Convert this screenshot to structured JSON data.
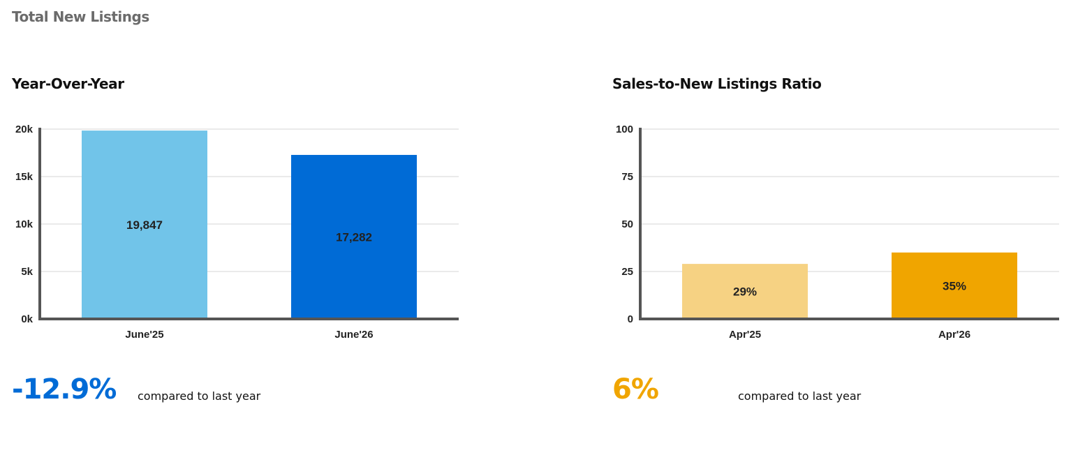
{
  "header": {
    "title": "Total New Listings"
  },
  "colors": {
    "gridline": "#e3e3e3",
    "axis": "#555555",
    "blue_light": "#71c4e9",
    "blue_dark": "#006bd6",
    "amber_light": "#f6d283",
    "amber_dark": "#f0a500"
  },
  "panels": {
    "yoy": {
      "title": "Year-Over-Year",
      "change_value": "-12.9%",
      "change_color": "#006bd6",
      "change_label": "compared to last year"
    },
    "ratio": {
      "title": "Sales-to-New Listings Ratio",
      "change_value": "6%",
      "change_color": "#f0a500",
      "change_label": "compared to last year"
    }
  },
  "chart_data": [
    {
      "type": "bar",
      "title": "Year-Over-Year",
      "categories": [
        "June'25",
        "June'26"
      ],
      "values": [
        19847,
        17282
      ],
      "value_labels": [
        "19,847",
        "17,282"
      ],
      "bar_colors": [
        "#71c4e9",
        "#006bd6"
      ],
      "ylim": [
        0,
        20000
      ],
      "yticks": [
        0,
        5000,
        10000,
        15000,
        20000
      ],
      "ytick_labels": [
        "0k",
        "5k",
        "10k",
        "15k",
        "20k"
      ],
      "grid": true
    },
    {
      "type": "bar",
      "title": "Sales-to-New Listings Ratio",
      "categories": [
        "Apr'25",
        "Apr'26"
      ],
      "values": [
        29,
        35
      ],
      "value_labels": [
        "29%",
        "35%"
      ],
      "bar_colors": [
        "#f6d283",
        "#f0a500"
      ],
      "ylim": [
        0,
        100
      ],
      "yticks": [
        0,
        25,
        50,
        75,
        100
      ],
      "ytick_labels": [
        "0",
        "25",
        "50",
        "75",
        "100"
      ],
      "grid": true
    }
  ]
}
